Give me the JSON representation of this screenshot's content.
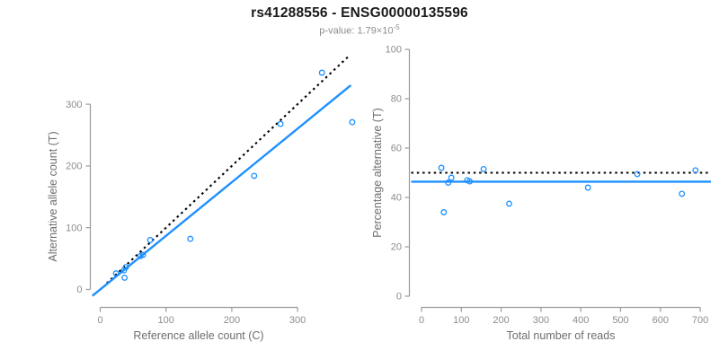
{
  "header": {
    "title": "rs41288556 - ENSG00000135596",
    "pvalue_text": "p-value: 1.79×10",
    "pvalue_exponent": "-5"
  },
  "colors": {
    "accent_blue": "#1E90FF",
    "dotted_black": "#000000",
    "axis_line": "#9a9a9a",
    "tick_label": "#8c8c8c",
    "axis_title": "#6e6e6e",
    "title_color": "#1a1a1a"
  },
  "chart_data": [
    {
      "type": "scatter",
      "panel": "counts",
      "xlabel": "Reference allele count (C)",
      "ylabel": "Alternative allele count (T)",
      "xticks": [
        0,
        100,
        200,
        300
      ],
      "yticks": [
        0,
        100,
        200,
        300
      ],
      "xlim": [
        -15,
        390
      ],
      "ylim": [
        -20,
        385
      ],
      "grid": false,
      "point_style": "open-circle",
      "points": [
        [
          24,
          26
        ],
        [
          36,
          31
        ],
        [
          37,
          19
        ],
        [
          39,
          36
        ],
        [
          61,
          54
        ],
        [
          65,
          56
        ],
        [
          76,
          80
        ],
        [
          137,
          82
        ],
        [
          234,
          184
        ],
        [
          274,
          268
        ],
        [
          383,
          271
        ],
        [
          337,
          351
        ]
      ],
      "lines": [
        {
          "name": "identity-line",
          "style": "dotted",
          "color": "#000000",
          "x1": 10,
          "y1": 10,
          "x2": 377,
          "y2": 377
        },
        {
          "name": "fit-line",
          "style": "solid",
          "color": "#1E90FF",
          "slope": 0.868,
          "x1": -12,
          "y1": -10.4,
          "x2": 381,
          "y2": 330.7
        }
      ]
    },
    {
      "type": "scatter",
      "panel": "percentage",
      "xlabel": "Total number of reads",
      "ylabel": "Percentage alternative (T)",
      "xticks": [
        0,
        100,
        200,
        300,
        400,
        500,
        600,
        700
      ],
      "yticks": [
        0,
        20,
        40,
        60,
        80,
        100
      ],
      "xlim": [
        -25,
        730
      ],
      "ylim": [
        0,
        100
      ],
      "grid": false,
      "point_style": "open-circle",
      "points": [
        [
          50,
          52
        ],
        [
          56,
          34
        ],
        [
          67,
          46
        ],
        [
          75,
          48
        ],
        [
          115,
          47
        ],
        [
          121,
          46.5
        ],
        [
          156,
          51.5
        ],
        [
          220,
          37.5
        ],
        [
          418,
          44
        ],
        [
          542,
          49.5
        ],
        [
          654,
          41.5
        ],
        [
          688,
          51
        ]
      ],
      "lines": [
        {
          "name": "expected-50pct-line",
          "style": "dotted",
          "color": "#000000",
          "y": 50
        },
        {
          "name": "fit-line",
          "style": "solid",
          "color": "#1E90FF",
          "y": 46.4
        }
      ]
    }
  ]
}
